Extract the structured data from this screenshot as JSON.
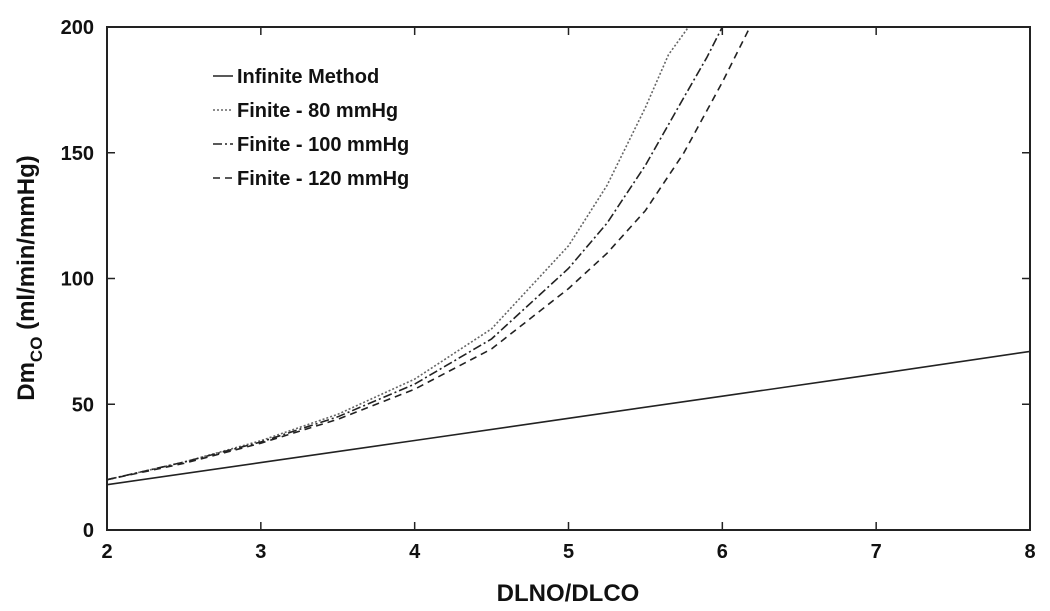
{
  "chart_data": {
    "type": "line",
    "xlabel": "DLNO/DLCO",
    "ylabel_main": "Dm",
    "ylabel_sub": "CO",
    "ylabel_tail": " (ml/min/mmHg)",
    "xlim": [
      2,
      8
    ],
    "ylim": [
      0,
      200
    ],
    "xticks": [
      "2",
      "3",
      "4",
      "5",
      "6",
      "7",
      "8"
    ],
    "yticks": [
      "0",
      "50",
      "100",
      "150",
      "200"
    ],
    "grid": false,
    "legend_position": "top-left",
    "series": [
      {
        "name": "Infinite Method",
        "style": "solid",
        "color": "#222222",
        "x": [
          2,
          3,
          4,
          5,
          6,
          7,
          8
        ],
        "y": [
          18,
          26.8,
          35.6,
          44.4,
          53.2,
          62,
          71
        ]
      },
      {
        "name": "Finite - 80 mmHg",
        "style": "dotted",
        "color": "#666666",
        "x": [
          2,
          2.5,
          3,
          3.5,
          4,
          4.5,
          5,
          5.25,
          5.5,
          5.65,
          5.78
        ],
        "y": [
          20,
          27,
          35.5,
          46,
          60,
          80,
          113,
          137,
          168,
          189,
          200
        ]
      },
      {
        "name": "Finite - 100 mmHg",
        "style": "dashdot",
        "color": "#222222",
        "x": [
          2,
          2.5,
          3,
          3.5,
          4,
          4.5,
          5,
          5.25,
          5.5,
          5.75,
          5.9,
          6.0
        ],
        "y": [
          20,
          27,
          35,
          45,
          58,
          76,
          104,
          122,
          145,
          172,
          188,
          200
        ]
      },
      {
        "name": "Finite - 120 mmHg",
        "style": "dashed",
        "color": "#222222",
        "x": [
          2,
          2.5,
          3,
          3.5,
          4,
          4.5,
          5,
          5.25,
          5.5,
          5.75,
          6.0,
          6.18
        ],
        "y": [
          20,
          26.5,
          34.5,
          44,
          56,
          72,
          96,
          110,
          127,
          150,
          178,
          200
        ]
      }
    ]
  }
}
